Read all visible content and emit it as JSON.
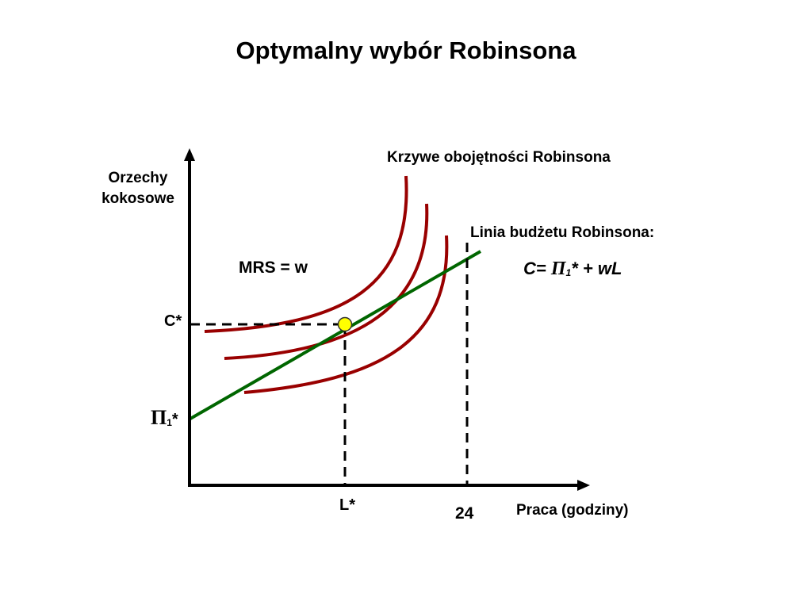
{
  "title": "Optymalny wybór Robinsona",
  "y_axis_label": {
    "line1": "Orzechy",
    "line2": "kokosowe"
  },
  "x_axis_label": "Praca (godziny)",
  "indifference_curves_label": "Krzywe obojętności Robinsona",
  "budget_line_label": "Linia budżetu Robinsona:",
  "budget_equation": {
    "prefix": "C= ",
    "pi": "Π",
    "subscript": "1",
    "suffix": "* + wL"
  },
  "mrs_label": "MRS = w",
  "c_star_label": "C*",
  "pi_intercept_label": {
    "pi": "Π",
    "subscript": "1",
    "suffix": "*"
  },
  "l_star_label": "L*",
  "hours_max_label": "24",
  "colors": {
    "indifference_curve": "#990000",
    "budget_line": "#006600",
    "optimum_point": "#ffff00",
    "axes": "#000000"
  }
}
